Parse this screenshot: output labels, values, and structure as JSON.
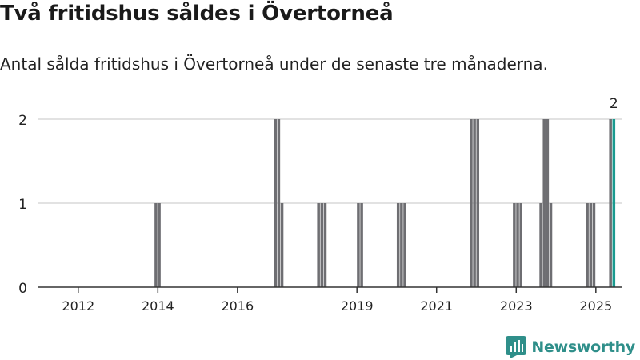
{
  "title": "Två fritidshus såldes i Övertorneå",
  "subtitle": "Antal sålda fritidshus i Övertorneå under de senaste tre månaderna.",
  "brand": {
    "name": "Newsworthy"
  },
  "colors": {
    "bar": "#6e6e72",
    "highlight": "#1a9a8f",
    "grid": "#d9d9d9",
    "axis": "#333333",
    "brand": "#2f8f8a"
  },
  "chart_data": {
    "type": "bar",
    "title": "Två fritidshus såldes i Övertorneå",
    "xlabel": "",
    "ylabel": "",
    "x_ticks": [
      "2012",
      "2014",
      "2016",
      "2019",
      "2021",
      "2023",
      "2025"
    ],
    "y_ticks": [
      0,
      1,
      2
    ],
    "ylim": [
      0,
      2
    ],
    "grid": true,
    "highlight_label": "2",
    "categories": [
      "2013-12",
      "2014-01",
      "2016-12",
      "2017-01",
      "2017-02",
      "2018-01",
      "2018-02",
      "2018-03",
      "2019-01",
      "2019-02",
      "2020-01",
      "2020-02",
      "2020-03",
      "2021-11",
      "2021-12",
      "2022-01",
      "2022-12",
      "2023-01",
      "2023-02",
      "2023-08",
      "2023-09",
      "2023-10",
      "2023-11",
      "2024-10",
      "2024-11",
      "2024-12",
      "2025-05",
      "2025-06"
    ],
    "values": [
      1,
      1,
      2,
      2,
      1,
      1,
      1,
      1,
      1,
      1,
      1,
      1,
      1,
      2,
      2,
      2,
      1,
      1,
      1,
      1,
      2,
      2,
      1,
      1,
      1,
      1,
      2,
      2
    ],
    "highlight_index": 27
  }
}
